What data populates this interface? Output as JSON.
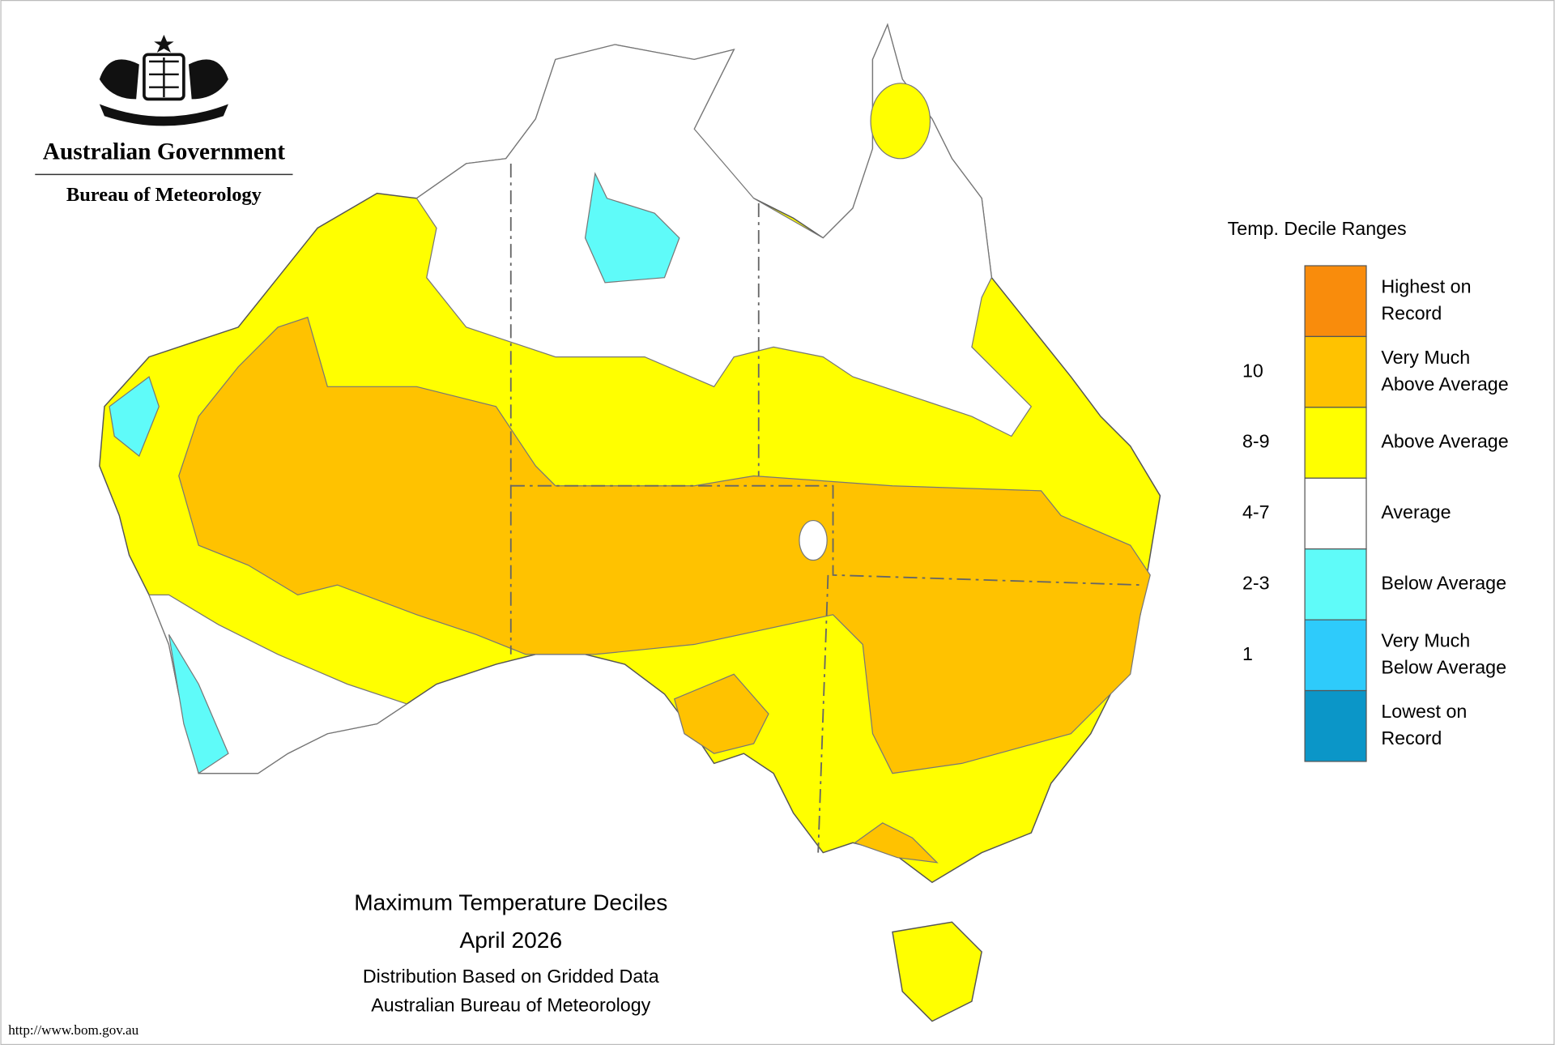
{
  "header": {
    "organisation": "Australian Government",
    "agency": "Bureau of Meteorology"
  },
  "title": {
    "lines": [
      "Maximum Temperature Deciles",
      "April 2026",
      "Distribution Based on Gridded Data",
      "Australian Bureau of Meteorology"
    ]
  },
  "footer": {
    "url": "http://www.bom.gov.au"
  },
  "legend": {
    "title": "Temp. Decile Ranges",
    "items": [
      {
        "label": [
          "Highest on",
          "Record"
        ],
        "color": "#f98c0c"
      },
      {
        "label": [
          "Very Much",
          "Above Average"
        ],
        "decile": "10",
        "color": "#ffc200"
      },
      {
        "label": [
          "Above Average"
        ],
        "decile": "8-9",
        "color": "#ffff00"
      },
      {
        "label": [
          "Average"
        ],
        "decile": "4-7",
        "color": "#ffffff"
      },
      {
        "label": [
          "Below Average"
        ],
        "decile": "2-3",
        "color": "#5ffbf9"
      },
      {
        "label": [
          "Very Much",
          "Below Average"
        ],
        "decile": "1",
        "color": "#2ecbfb"
      },
      {
        "label": [
          "Lowest on",
          "Record"
        ],
        "color": "#0b96c8"
      }
    ]
  }
}
